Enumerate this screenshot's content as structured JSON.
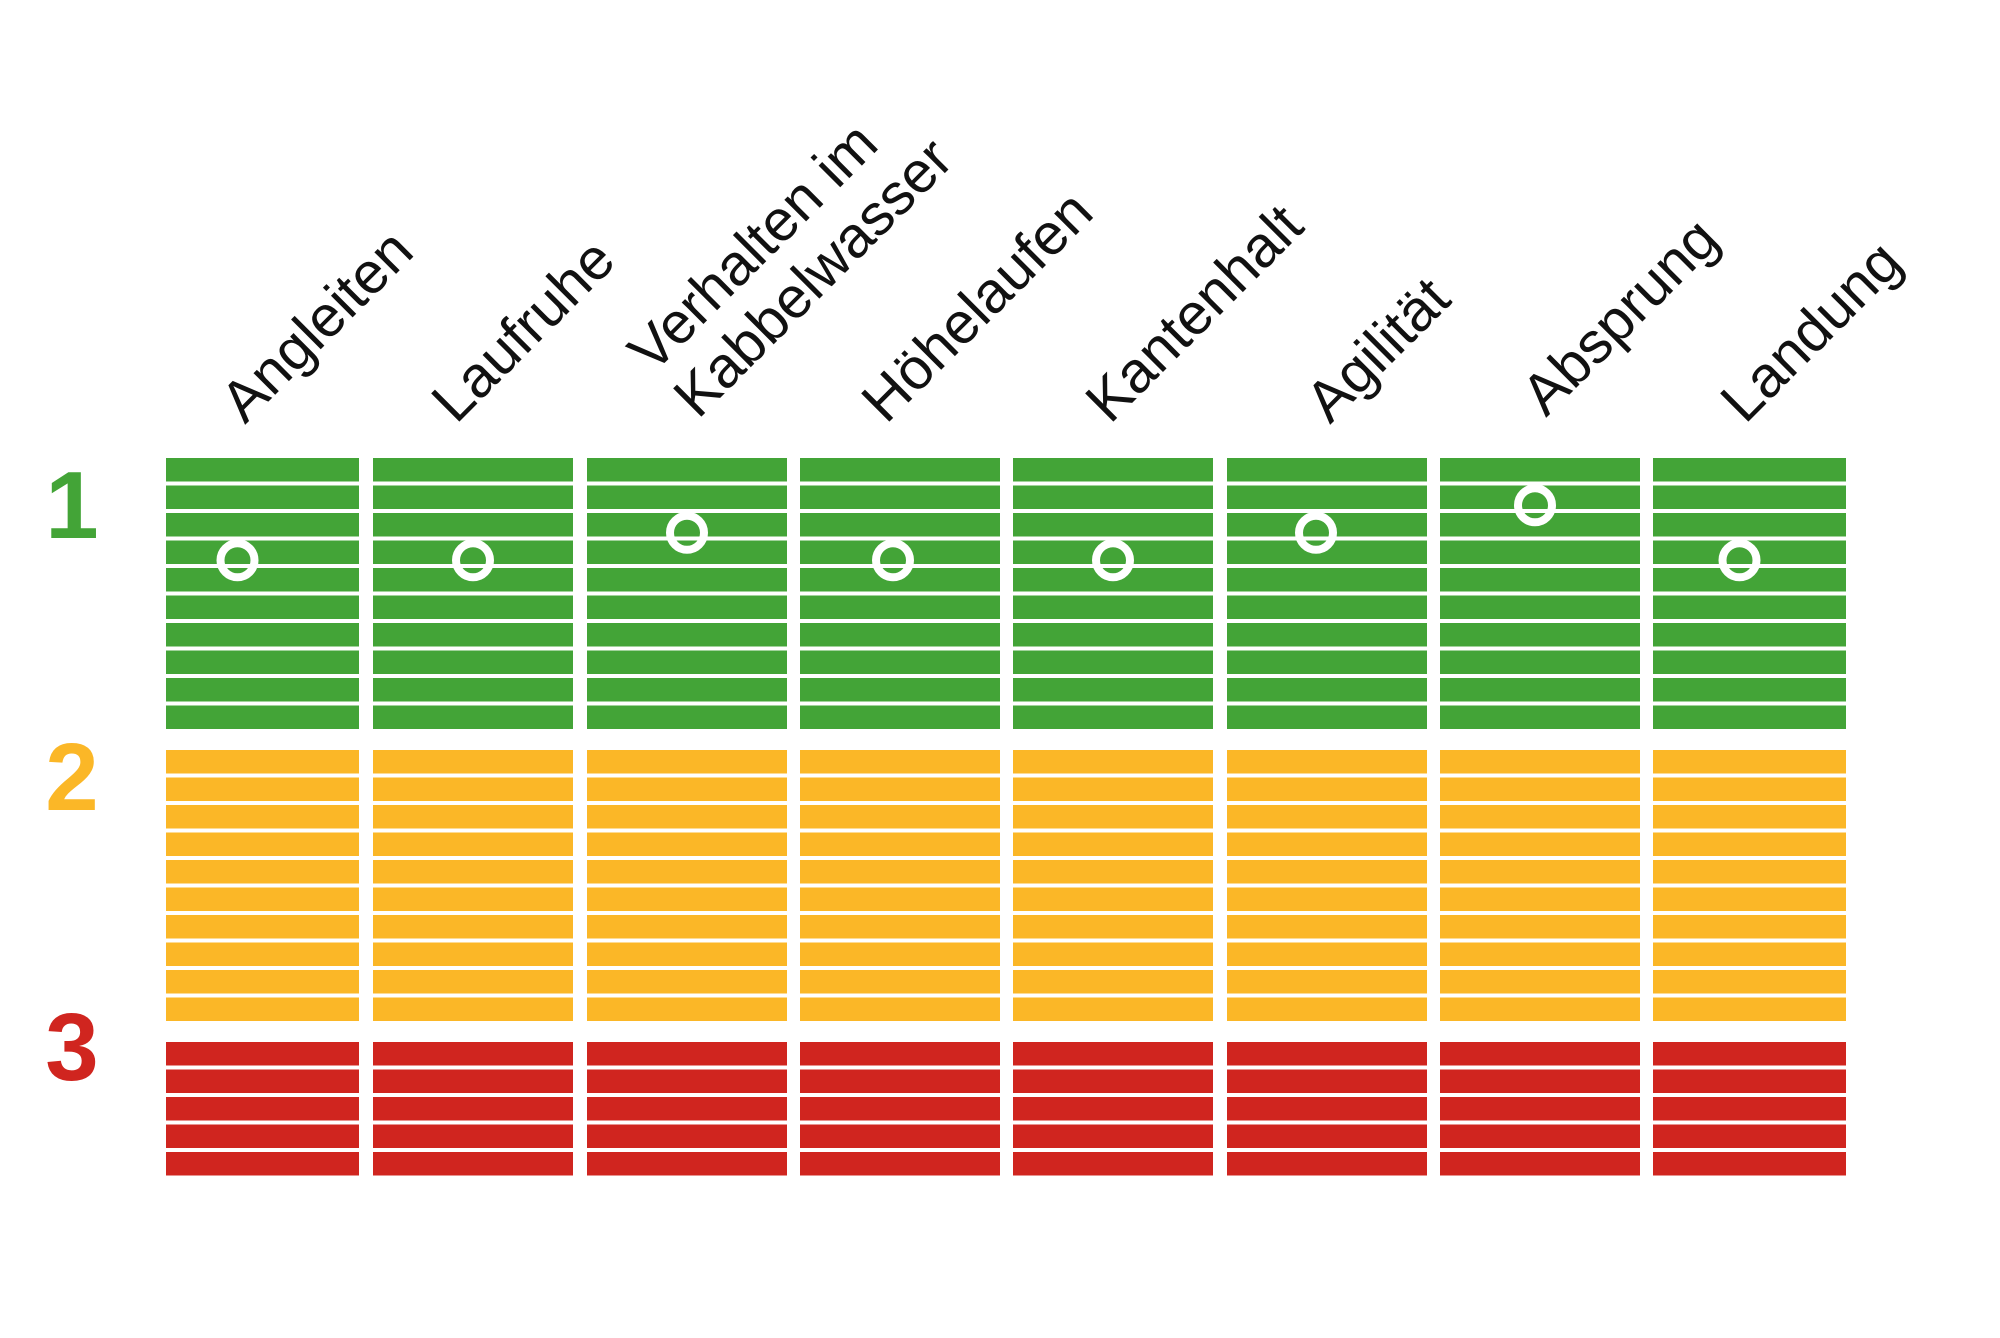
{
  "chart_data": {
    "type": "heatmap",
    "title": "",
    "categories": [
      [
        "Angleiten"
      ],
      [
        "Laufruhe"
      ],
      [
        "Verhalten im",
        "Kabbelwasser"
      ],
      [
        "Höhelaufen"
      ],
      [
        "Kantenhalt"
      ],
      [
        "Agilität"
      ],
      [
        "Absprung"
      ],
      [
        "Landung"
      ]
    ],
    "levels": [
      {
        "label": "1",
        "color": "#43a437",
        "segments": 10
      },
      {
        "label": "2",
        "color": "#fbb727",
        "segments": 10
      },
      {
        "label": "3",
        "color": "#d0251f",
        "segments": 5
      }
    ],
    "ratings": [
      1.35,
      1.35,
      1.25,
      1.35,
      1.35,
      1.25,
      1.15,
      1.35
    ],
    "rating_scale": [
      1,
      3
    ],
    "marker_color": "#ffffff",
    "grid": false
  }
}
